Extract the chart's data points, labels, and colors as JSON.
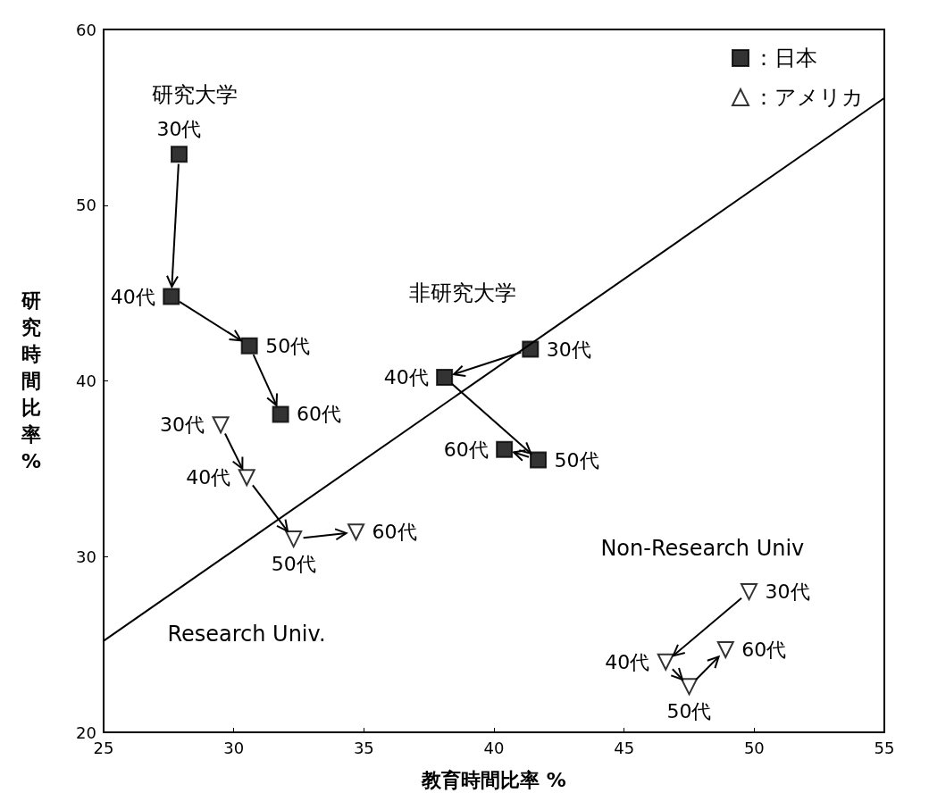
{
  "chart_data": {
    "type": "scatter",
    "xlabel": "教育時間比率 %",
    "ylabel": "研究時間比率 %",
    "xlim": [
      25,
      55
    ],
    "xticks": [
      25,
      30,
      35,
      40,
      45,
      50,
      55
    ],
    "ylim": [
      20,
      60
    ],
    "yticks": [
      20,
      30,
      40,
      50,
      60
    ],
    "grid": false,
    "legend": "top right",
    "series": [
      {
        "name": "：日本",
        "color": "#000000",
        "marker": "square",
        "x": [
          27.9,
          27.6,
          30.6,
          31.8
        ],
        "values": [
          52.9,
          44.8,
          42.0,
          38.1
        ]
      },
      {
        "color": "#000000",
        "marker": "square",
        "x": [
          41.4,
          38.1,
          41.7,
          40.4
        ],
        "values": [
          41.8,
          40.2,
          35.5,
          36.1
        ]
      },
      {
        "name": "：アメリカ",
        "color": "#000000",
        "marker": "triangle",
        "x": [
          29.5,
          30.5,
          32.3,
          34.7
        ],
        "values": [
          37.5,
          34.5,
          31.0,
          31.4
        ]
      },
      {
        "color": "#000000",
        "marker": "triangle",
        "x": [
          49.8,
          46.6,
          47.5,
          48.9
        ],
        "values": [
          28.0,
          24.0,
          22.6,
          24.7
        ]
      },
      {
        "type": "line",
        "color": "#000000",
        "marker": "none",
        "x": [
          25,
          55
        ],
        "values": [
          25.2,
          56.1
        ]
      }
    ],
    "annotations": [
      "研究大学",
      "非研究大学",
      "Research Univ.",
      "Non-Research Univ",
      {
        "text": "30代",
        "x": 27.9,
        "y": 52.9
      },
      {
        "text": "40代",
        "x": 27.6,
        "y": 44.8
      },
      {
        "text": "50代",
        "x": 30.6,
        "y": 42.0
      },
      {
        "text": "60代",
        "x": 31.8,
        "y": 38.1
      },
      {
        "text": "30代",
        "x": 41.4,
        "y": 41.8
      },
      {
        "text": "40代",
        "x": 38.1,
        "y": 40.2
      },
      {
        "text": "50代",
        "x": 41.7,
        "y": 35.5
      },
      {
        "text": "60代",
        "x": 40.4,
        "y": 36.1
      },
      {
        "text": "30代",
        "x": 29.5,
        "y": 37.5
      },
      {
        "text": "40代",
        "x": 30.5,
        "y": 34.5
      },
      {
        "text": "50代",
        "x": 32.3,
        "y": 31.0
      },
      {
        "text": "60代",
        "x": 34.7,
        "y": 31.4
      },
      {
        "text": "30代",
        "x": 49.8,
        "y": 28.0
      },
      {
        "text": "40代",
        "x": 46.6,
        "y": 24.0
      },
      {
        "text": "50代",
        "x": 47.5,
        "y": 22.6
      },
      {
        "text": "60代",
        "x": 48.9,
        "y": 24.7
      }
    ]
  }
}
